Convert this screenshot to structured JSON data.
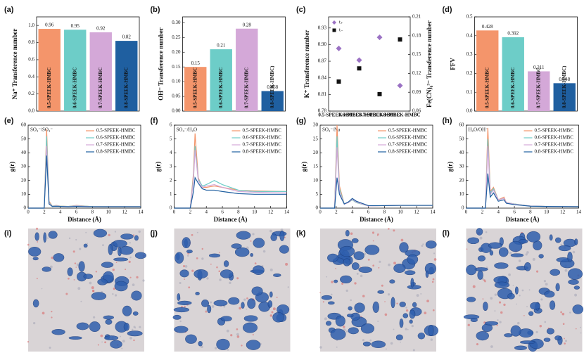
{
  "chart_data": [
    {
      "type": "bar",
      "panel": "(a)",
      "ylabel": "Na⁺ Transference number",
      "categories": [
        "0.5-SPEEK-HMBC",
        "0.6-SPEEK-HMBC",
        "0.7-SPEEK-HMBC",
        "0.8-SPEEK-HMBC"
      ],
      "colors": [
        "#f4956b",
        "#6dcdc8",
        "#d4a8d8",
        "#1f5fa0"
      ],
      "values": [
        0.96,
        0.95,
        0.92,
        0.82
      ],
      "value_labels": [
        "0.96",
        "0.95",
        "0.92",
        "0.82"
      ],
      "ylim": [
        0,
        1.1
      ],
      "yticks": [
        {
          "value": 0,
          "label": "0.0"
        },
        0.2,
        0.4,
        0.6,
        0.8,
        {
          "value": 1,
          "label": "1.0"
        }
      ]
    },
    {
      "type": "bar",
      "panel": "(b)",
      "ylabel": "OH⁻ Transference number",
      "categories": [
        "0.5-SPEEK-HMBC",
        "0.6-SPEEK-HMBC",
        "0.7-SPEEK-HMBC",
        "0.8-SPEEK-HMBC)"
      ],
      "colors": [
        "#f4956b",
        "#6dcdc8",
        "#d4a8d8",
        "#1f5fa0"
      ],
      "values": [
        0.15,
        0.21,
        0.28,
        0.068
      ],
      "value_labels": [
        "0.15",
        "0.21",
        "0.28",
        "0.068"
      ],
      "ylim": [
        0,
        0.32
      ],
      "yticks": [
        {
          "value": 0,
          "label": "0.00"
        },
        0.05,
        {
          "value": 0.1,
          "label": "0.10"
        },
        0.15,
        {
          "value": 0.2,
          "label": "0.20"
        },
        0.25,
        {
          "value": 0.3,
          "label": "0.30"
        }
      ]
    },
    {
      "type": "scatter",
      "panel": "(c)",
      "ylabel": "K⁺ Transference number",
      "y2label": "Fe(CN)₆³⁻ Transference number",
      "categories": [
        "0.5-SPEEK-HMBC",
        "0.6-SPEEK-HMBC",
        "0.7-SPEEK-HMBC",
        "0.8-SPEEK-HMBC"
      ],
      "series": [
        {
          "name": "t₊",
          "color": "#9b72c4",
          "marker": "diamond",
          "values": [
            0.893,
            0.872,
            0.913,
            0.826
          ]
        },
        {
          "name": "t₋",
          "color": "#111111",
          "marker": "square",
          "axis": "y2",
          "values": [
            0.107,
            0.128,
            0.087,
            0.174
          ]
        }
      ],
      "ylim": [
        0.78,
        0.95
      ],
      "yticks": [
        0.78,
        0.81,
        0.84,
        0.87,
        {
          "value": 0.9,
          "label": "0.90"
        },
        0.93
      ],
      "y2lim": [
        0.06,
        0.21
      ],
      "y2ticks": [
        0.06,
        0.09,
        0.12,
        0.15,
        0.18,
        0.21
      ],
      "legend": "upper left"
    },
    {
      "type": "bar",
      "panel": "(d)",
      "ylabel": "FFV",
      "categories": [
        "0.5-SPEEK-HMBC",
        "0.6-SPEEK-HMBC",
        "0.7-SPEEK-HMBC",
        "0.8-SPEEK-HMBC)"
      ],
      "colors": [
        "#f4956b",
        "#6dcdc8",
        "#d4a8d8",
        "#1f5fa0"
      ],
      "values": [
        0.428,
        0.392,
        0.211,
        0.148
      ],
      "value_labels": [
        "0.428",
        "0.392",
        "0.211",
        "0.148"
      ],
      "ylim": [
        0,
        0.5
      ],
      "yticks": [
        {
          "value": 0,
          "label": "0.0"
        },
        0.1,
        0.2,
        0.3,
        0.4,
        0.5
      ]
    },
    {
      "type": "line",
      "panel": "(e)",
      "annotation": "SO₃⁻/SO₃⁻",
      "xlabel": "Distance (Å)",
      "ylabel": "g(r)",
      "x": [
        0,
        2,
        2.3,
        2.6,
        3,
        3.5,
        4,
        5,
        6,
        8,
        10,
        14
      ],
      "series": [
        {
          "name": "0.5-SPEEK-HMBC",
          "color": "#f4956b",
          "values": [
            0,
            0,
            57,
            5,
            1.5,
            2,
            1.5,
            1.2,
            2,
            1.1,
            1,
            1
          ]
        },
        {
          "name": "0.6-SPEEK-HMBC",
          "color": "#6dcdc8",
          "values": [
            0,
            0,
            52,
            4,
            1.5,
            1.8,
            1.4,
            1.2,
            1.8,
            1.1,
            1,
            1
          ]
        },
        {
          "name": "0.7-SPEEK-HMBC",
          "color": "#d4a8d8",
          "values": [
            0,
            0,
            45,
            3.5,
            1.3,
            1.6,
            1.3,
            1.1,
            1.6,
            1,
            1,
            1
          ]
        },
        {
          "name": "0.8-SPEEK-HMBC",
          "color": "#1f5fa0",
          "values": [
            0,
            0,
            38,
            3,
            1.2,
            1.3,
            1.2,
            1,
            1.2,
            1,
            1,
            1
          ]
        }
      ],
      "xlim": [
        0,
        14
      ],
      "xticks": [
        0,
        2,
        4,
        6,
        8,
        10,
        12,
        14
      ],
      "ylim": [
        0,
        60
      ],
      "yticks": [
        0,
        10,
        20,
        30,
        40,
        50,
        60
      ],
      "legend": "upper right"
    },
    {
      "type": "line",
      "panel": "(f)",
      "annotation": "SO₃⁻/H₂O",
      "xlabel": "Distance (Å)",
      "ylabel": "g(r)",
      "x": [
        0,
        2,
        2.4,
        2.6,
        3,
        3.5,
        4,
        5,
        6,
        8,
        10,
        14
      ],
      "series": [
        {
          "name": "0.5-SPEEK-HMBC",
          "color": "#f4956b",
          "values": [
            0,
            0,
            2.5,
            5.4,
            2.2,
            1.5,
            1.5,
            1.6,
            1.5,
            1.3,
            1.25,
            1.2
          ]
        },
        {
          "name": "0.6-SPEEK-HMBC",
          "color": "#6dcdc8",
          "values": [
            0,
            0,
            2.2,
            4.5,
            2.1,
            1.6,
            1.7,
            2,
            1.7,
            1.3,
            1.2,
            1.2
          ]
        },
        {
          "name": "0.7-SPEEK-HMBC",
          "color": "#d4a8d8",
          "values": [
            0,
            0,
            2,
            4.2,
            2,
            1.5,
            1.6,
            1.7,
            1.5,
            1.2,
            1.15,
            1.1
          ]
        },
        {
          "name": "0.8-SPEEK-HMBC",
          "color": "#1f5fa0",
          "values": [
            0,
            0,
            1.2,
            2.2,
            1.8,
            1.4,
            1.3,
            1.3,
            1.2,
            1.05,
            1,
            1
          ]
        }
      ],
      "xlim": [
        0,
        14
      ],
      "xticks": [
        0,
        2,
        4,
        6,
        8,
        10,
        12,
        14
      ],
      "ylim": [
        0,
        6
      ],
      "yticks": [
        0,
        1,
        2,
        3,
        4,
        5,
        6
      ],
      "legend": "upper right"
    },
    {
      "type": "line",
      "panel": "(g)",
      "annotation": "SO₃⁻/Na",
      "xlabel": "Distance (Å)",
      "ylabel": "g(r)",
      "x": [
        0,
        1.8,
        2.1,
        2.4,
        3,
        3.5,
        4,
        4.5,
        6,
        8,
        10,
        14
      ],
      "series": [
        {
          "name": "0.5-SPEEK-HMBC",
          "color": "#f4956b",
          "values": [
            0,
            0,
            30,
            8,
            1.5,
            2,
            3,
            2,
            0.8,
            0.9,
            1,
            1
          ]
        },
        {
          "name": "0.6-SPEEK-HMBC",
          "color": "#6dcdc8",
          "values": [
            0,
            0,
            26,
            7,
            1.5,
            2,
            3,
            2,
            0.8,
            0.9,
            1,
            1
          ]
        },
        {
          "name": "0.7-SPEEK-HMBC",
          "color": "#d4a8d8",
          "values": [
            0,
            0,
            22,
            6,
            1.4,
            2,
            3.2,
            2.2,
            0.8,
            0.9,
            1,
            1
          ]
        },
        {
          "name": "0.8-SPEEK-HMBC",
          "color": "#1f5fa0",
          "values": [
            0,
            0,
            11,
            5,
            1.5,
            2.2,
            3.5,
            2.5,
            0.9,
            0.9,
            1,
            1
          ]
        }
      ],
      "xlim": [
        0,
        14
      ],
      "xticks": [
        0,
        2,
        4,
        6,
        8,
        10,
        12,
        14
      ],
      "ylim": [
        0,
        30
      ],
      "yticks": [
        0,
        5,
        10,
        15,
        20,
        25,
        30
      ],
      "legend": "upper right"
    },
    {
      "type": "line",
      "panel": "(h)",
      "annotation": "H₂O/OH⁻",
      "xlabel": "Distance (Å)",
      "ylabel": "g(r)",
      "x": [
        0,
        2.4,
        2.7,
        3,
        3.4,
        4,
        4.7,
        5,
        6,
        8,
        10,
        14
      ],
      "series": [
        {
          "name": "0.5-SPEEK-HMBC",
          "color": "#f4956b",
          "values": [
            0,
            0,
            58,
            12,
            15,
            6,
            8,
            4,
            3,
            1.5,
            1.2,
            1
          ]
        },
        {
          "name": "0.6-SPEEK-HMBC",
          "color": "#6dcdc8",
          "values": [
            0,
            0,
            50,
            11,
            14,
            6,
            7,
            4,
            3,
            1.5,
            1.2,
            1
          ]
        },
        {
          "name": "0.7-SPEEK-HMBC",
          "color": "#d4a8d8",
          "values": [
            0,
            0,
            45,
            10,
            13,
            6,
            7,
            4,
            2.8,
            1.5,
            1.2,
            1
          ]
        },
        {
          "name": "0.8-SPEEK-HMBC",
          "color": "#1f5fa0",
          "values": [
            0,
            0,
            25,
            8,
            11,
            5,
            6,
            3.5,
            2.5,
            1.4,
            1.2,
            1
          ]
        }
      ],
      "xlim": [
        0,
        14
      ],
      "xticks": [
        0,
        2,
        4,
        6,
        8,
        10,
        12,
        14
      ],
      "ylim": [
        0,
        60
      ],
      "yticks": [
        0,
        10,
        20,
        30,
        40,
        50,
        60
      ],
      "legend": "upper right"
    }
  ],
  "images": [
    {
      "label": "(i)"
    },
    {
      "label": "(j)"
    },
    {
      "label": "(k)"
    },
    {
      "label": "(l)"
    }
  ]
}
